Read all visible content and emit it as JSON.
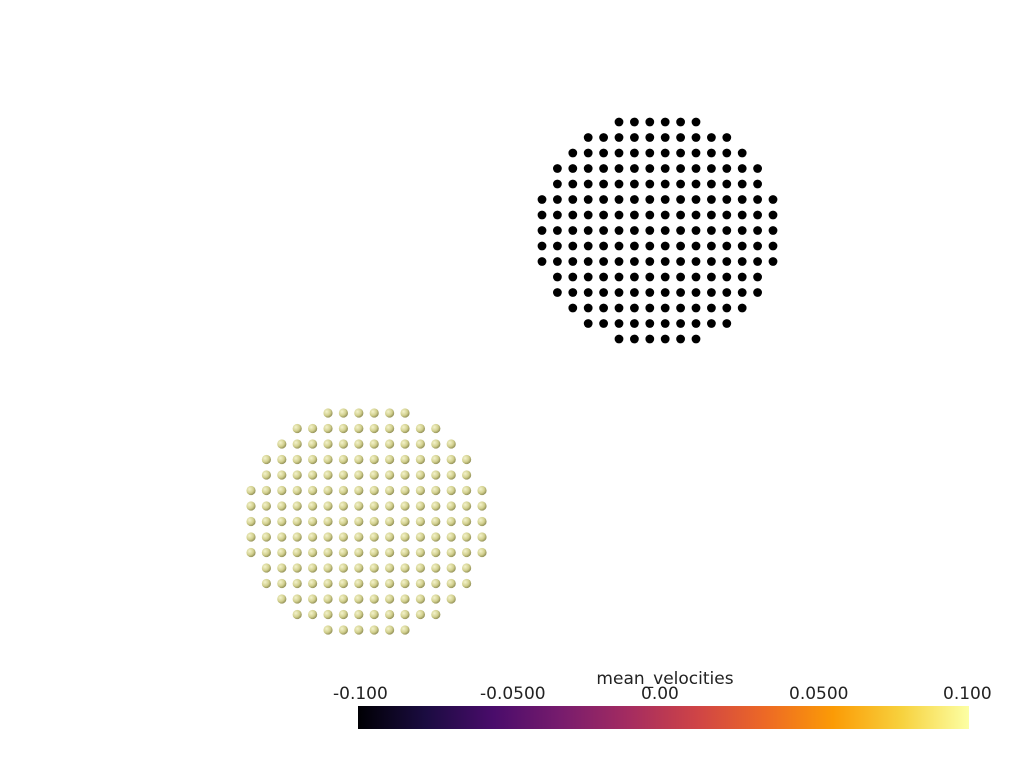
{
  "scalar_bar": {
    "title": "mean_velocities",
    "ticks": [
      "-0.100",
      "-0.0500",
      "0.00",
      "0.0500",
      "0.100"
    ],
    "range": [
      -0.1,
      0.1
    ],
    "colormap": "inferno",
    "colormap_stops": [
      "#000004",
      "#1b0c41",
      "#4a0c6b",
      "#781c6d",
      "#a52c60",
      "#cf4446",
      "#ed6925",
      "#fb9b06",
      "#f7d13d",
      "#fcffa4"
    ]
  },
  "point_clouds": [
    {
      "name": "upper-right-disk",
      "color": "#000000",
      "value": -0.1
    },
    {
      "name": "lower-left-disk",
      "color": "#d7d69a",
      "value": 0.1
    }
  ]
}
